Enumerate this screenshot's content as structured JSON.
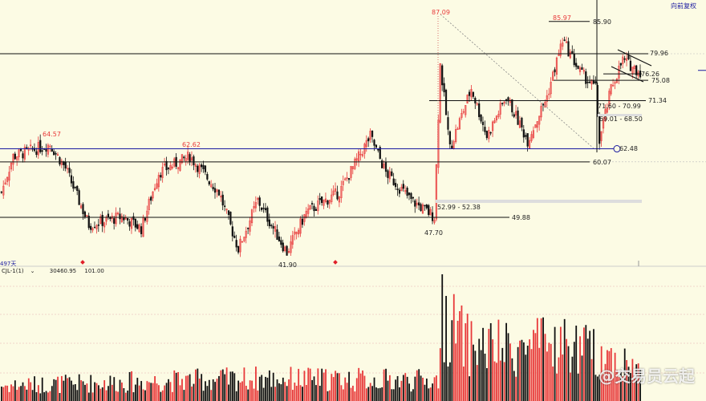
{
  "header": {
    "adjust_label": "向前复权",
    "days_label": "497天"
  },
  "volume_panel": {
    "indicator": "CJL-1(1)",
    "value1": "30460.95",
    "value2": "101.00"
  },
  "watermark": "@交易员云起",
  "colors": {
    "up": "#e8393a",
    "down": "#111111",
    "level_line": "#111111",
    "blue_line": "#1a1aa0",
    "background": "#fcfbe4"
  },
  "chart_data": {
    "type": "candlestick",
    "bars": 330,
    "close_path": [
      [
        0,
        54.5
      ],
      [
        6,
        61.1
      ],
      [
        25,
        63.3
      ],
      [
        33,
        58.9
      ],
      [
        45,
        48.5
      ],
      [
        62,
        50
      ],
      [
        72,
        47.8
      ],
      [
        81,
        58.1
      ],
      [
        97,
        61.1
      ],
      [
        112,
        54.5
      ],
      [
        122,
        44.1
      ],
      [
        132,
        53
      ],
      [
        147,
        43.4
      ],
      [
        157,
        50.8
      ],
      [
        174,
        54.5
      ],
      [
        190,
        64.8
      ],
      [
        198,
        58.1
      ],
      [
        211,
        53
      ],
      [
        223,
        50
      ],
      [
        226,
        78
      ],
      [
        231,
        62.6
      ],
      [
        242,
        73.6
      ],
      [
        250,
        64.8
      ],
      [
        260,
        72.1
      ],
      [
        271,
        64
      ],
      [
        281,
        72.1
      ],
      [
        289,
        82.5
      ],
      [
        298,
        76.6
      ],
      [
        306,
        73.6
      ],
      [
        308,
        64
      ],
      [
        314,
        73.6
      ],
      [
        320,
        78.8
      ],
      [
        329,
        76.6
      ]
    ],
    "volume_profile": [
      [
        0,
        0.15
      ],
      [
        130,
        0.22
      ],
      [
        225,
        0.2
      ],
      [
        226,
        0.85
      ],
      [
        240,
        0.55
      ],
      [
        260,
        0.5
      ],
      [
        289,
        0.55
      ],
      [
        310,
        0.45
      ],
      [
        329,
        0.3
      ]
    ],
    "levels": [
      {
        "value": 79.96,
        "label": "79.96"
      },
      {
        "value": 75.08,
        "label": "75.08"
      },
      {
        "value": 71.34,
        "label": "71.34"
      },
      {
        "value": 62.48,
        "label": "62.48",
        "color": "blue"
      },
      {
        "value": 60.07,
        "label": "60.07"
      },
      {
        "value": 49.88,
        "label": "49.88"
      },
      {
        "value": 85.9,
        "label": "85.90"
      },
      {
        "value": 76.26,
        "label": "76.26"
      }
    ],
    "zones": [
      {
        "label": "52.99 - 52.38"
      },
      {
        "label": "69.01 - 68.50"
      },
      {
        "label": "71.60 - 70.99"
      }
    ],
    "annotations": {
      "high_87": "87.09",
      "high_85": "85.97",
      "high_64": "64.57",
      "high_62": "62.62",
      "low_41": "41.90",
      "low_47": "47.70"
    }
  }
}
